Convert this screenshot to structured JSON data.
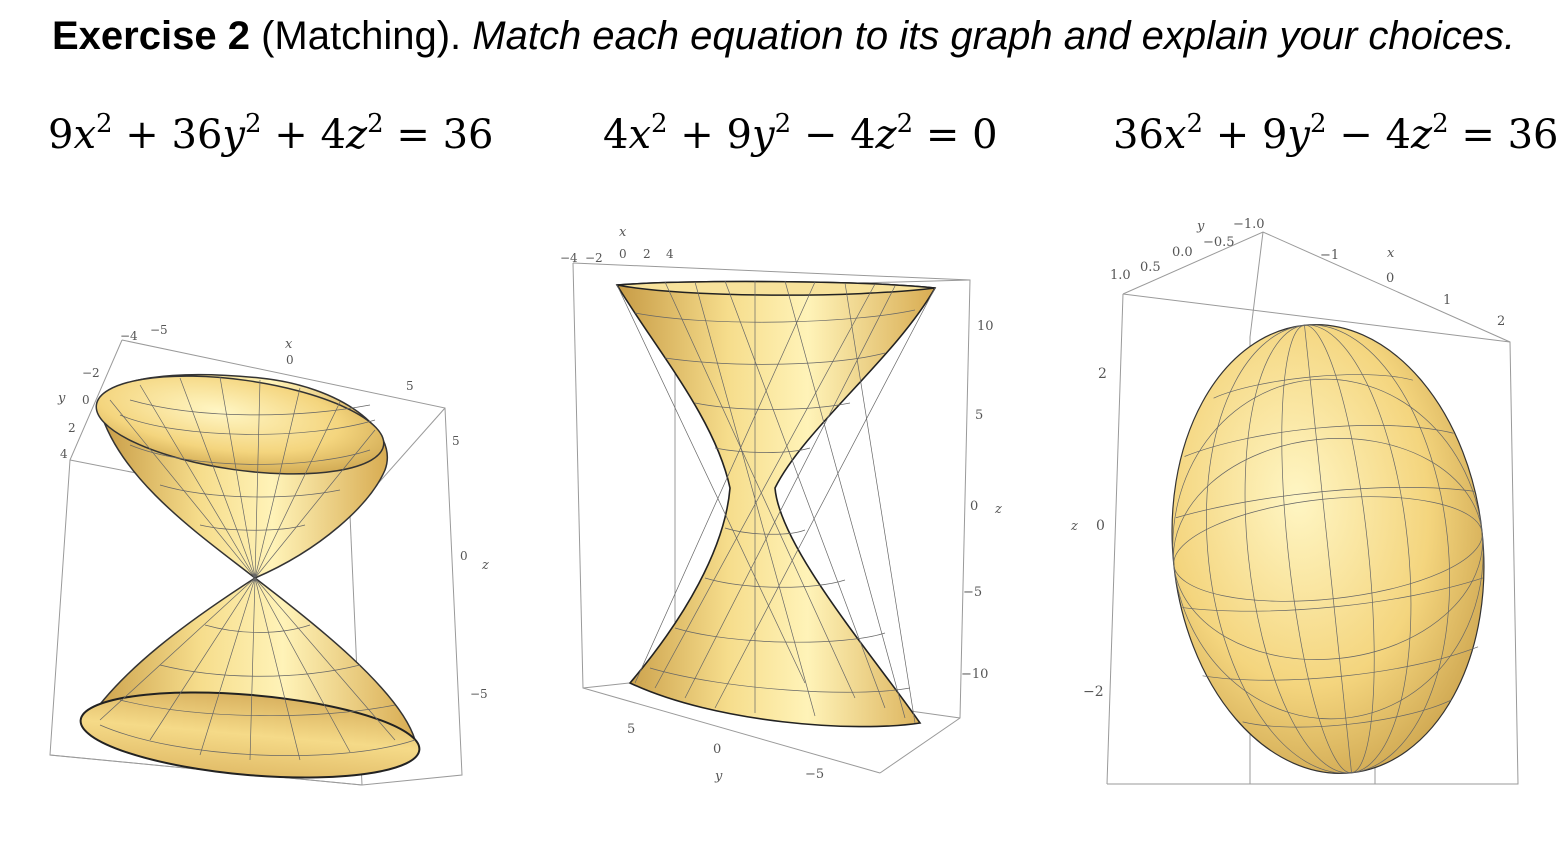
{
  "exercise": {
    "label": "Exercise 2",
    "tag": "(Matching).",
    "instruction": "Match each equation to its graph and explain your choices."
  },
  "equations": [
    {
      "c1": "9",
      "v1": "x",
      "c2": "36",
      "v2": "y",
      "op2": "−",
      "c3": "4",
      "v3": "z",
      "op1": "+",
      "rhs": "36"
    },
    {
      "c1": "4",
      "v1": "x",
      "c2": "9",
      "v2": "y",
      "op2": "−",
      "c3": "4",
      "v3": "z",
      "op1": "+",
      "rhs": "0"
    },
    {
      "c1": "36",
      "v1": "x",
      "c2": "9",
      "v2": "y",
      "op2": "−",
      "c3": "4",
      "v3": "z",
      "op1": "+",
      "rhs": "36"
    }
  ],
  "plots": {
    "cone": {
      "x_label": "x",
      "y_label": "y",
      "z_label": "z",
      "x_ticks": [
        "−4",
        "−5",
        "0",
        "5"
      ],
      "y_ticks": [
        "−2",
        "0",
        "2",
        "4"
      ],
      "z_ticks": [
        "5",
        "0",
        "−5"
      ]
    },
    "hyperboloid": {
      "x_label": "x",
      "y_label": "y",
      "z_label": "z",
      "x_ticks": [
        "−4",
        "−2",
        "0",
        "2",
        "4"
      ],
      "y_ticks": [
        "5",
        "0",
        "−5"
      ],
      "z_ticks": [
        "10",
        "5",
        "0",
        "−5",
        "−10"
      ]
    },
    "ellipsoid": {
      "x_label": "x",
      "y_label": "y",
      "z_label": "z",
      "x_ticks": [
        "−1",
        "0",
        "1",
        "2"
      ],
      "y_ticks": [
        "1.0",
        "0.5",
        "0.0",
        "−0.5",
        "−1.0"
      ],
      "z_ticks": [
        "2",
        "0",
        "−2"
      ]
    }
  },
  "colors": {
    "surface_light": "#fbe9a0",
    "surface_mid": "#e8c368",
    "surface_dark": "#b58d3a",
    "mesh": "#555555"
  }
}
